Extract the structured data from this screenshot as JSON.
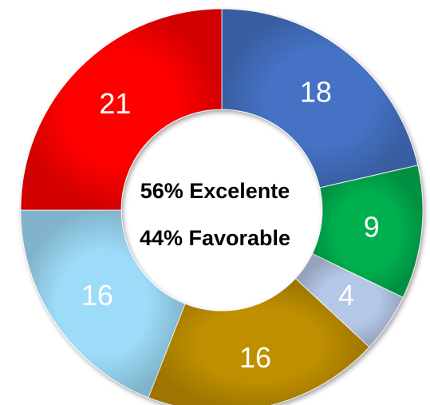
{
  "chart_data": {
    "type": "pie",
    "donut": true,
    "title": "",
    "slices": [
      {
        "label": "18",
        "value": 18,
        "color": "#4472C4"
      },
      {
        "label": "9",
        "value": 9,
        "color": "#00B050"
      },
      {
        "label": "4",
        "value": 4,
        "color": "#B4C7E7"
      },
      {
        "label": "16",
        "value": 16,
        "color": "#BF8F00"
      },
      {
        "label": "16",
        "value": 16,
        "color": "#9DDCF9"
      },
      {
        "label": "21",
        "value": 21,
        "color": "#FF0000"
      }
    ],
    "center_lines": [
      "56% Excelente",
      "44% Favorable"
    ]
  }
}
